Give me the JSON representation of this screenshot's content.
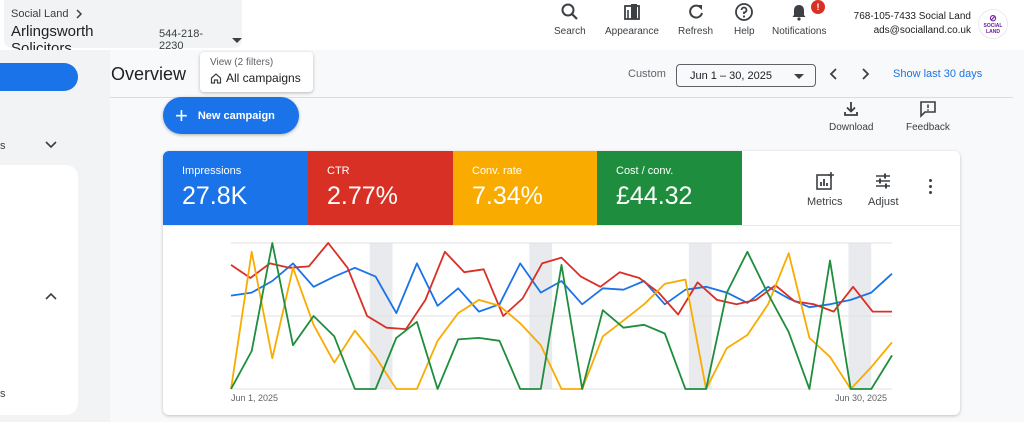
{
  "header": {
    "manager_label": "Social Land",
    "account_name": "Arlingsworth Solicitors",
    "account_id": "544-218-2230",
    "tools": [
      {
        "label": "Search",
        "icon": "search-icon"
      },
      {
        "label": "Appearance",
        "icon": "appearance-icon"
      },
      {
        "label": "Refresh",
        "icon": "refresh-icon"
      },
      {
        "label": "Help",
        "icon": "help-icon"
      },
      {
        "label": "Notifications",
        "icon": "bell-icon",
        "badge": "!"
      }
    ],
    "user_line1": "768-105-7433 Social Land",
    "user_line2": "ads@socialland.co.uk",
    "logo_text": [
      "SOCIAL",
      "LAND"
    ]
  },
  "sidebar": {
    "item1_suffix": "s",
    "item2_suffix": "s"
  },
  "page": {
    "title": "Overview",
    "view_filters": "View (2 filters)",
    "view_scope": "All campaigns",
    "date_preset": "Custom",
    "date_range": "Jun 1 – 30, 2025",
    "show_last": "Show last 30 days",
    "new_campaign": "New campaign",
    "download": "Download",
    "feedback": "Feedback"
  },
  "metrics": [
    {
      "label": "Impressions",
      "value": "27.8K",
      "color": "#1a73e8"
    },
    {
      "label": "CTR",
      "value": "2.77%",
      "color": "#d93025"
    },
    {
      "label": "Conv. rate",
      "value": "7.34%",
      "color": "#f9ab00"
    },
    {
      "label": "Cost / conv.",
      "value": "£44.32",
      "color": "#1e8e3e"
    }
  ],
  "card_tools": {
    "metrics": "Metrics",
    "adjust": "Adjust"
  },
  "chart_data": {
    "type": "line",
    "x_start_label": "Jun 1, 2025",
    "x_end_label": "Jun 30, 2025",
    "weekend_days": [
      7,
      8,
      14,
      15,
      21,
      22,
      28,
      29
    ],
    "series": [
      {
        "color": "#1a73e8",
        "values": [
          0.64,
          0.66,
          0.74,
          0.86,
          0.7,
          0.77,
          0.83,
          0.77,
          0.52,
          0.86,
          0.57,
          0.69,
          0.53,
          0.58,
          0.86,
          0.66,
          0.74,
          0.58,
          0.69,
          0.68,
          0.74,
          0.58,
          0.68,
          0.7,
          0.66,
          0.59,
          0.7,
          0.62,
          0.56,
          0.58,
          0.61,
          0.66,
          0.79
        ]
      },
      {
        "color": "#d93025",
        "values": [
          0.85,
          0.76,
          0.86,
          0.83,
          0.84,
          1.0,
          0.83,
          0.5,
          0.42,
          0.41,
          0.61,
          0.94,
          0.8,
          0.82,
          0.5,
          0.62,
          0.86,
          0.9,
          0.77,
          0.7,
          0.8,
          0.76,
          0.66,
          0.51,
          0.73,
          0.61,
          0.58,
          0.61,
          0.71,
          0.6,
          0.58,
          0.53,
          0.7,
          0.53,
          0.53
        ]
      },
      {
        "color": "#f9ab00",
        "values": [
          0.0,
          0.94,
          0.21,
          0.83,
          0.44,
          0.18,
          0.4,
          0.22,
          0.0,
          0.0,
          0.33,
          0.52,
          0.61,
          0.57,
          0.45,
          0.3,
          0.0,
          0.0,
          0.36,
          0.47,
          0.58,
          0.72,
          0.75,
          0.0,
          0.28,
          0.37,
          0.58,
          0.93,
          0.35,
          0.22,
          0.0,
          0.15,
          0.32
        ]
      },
      {
        "color": "#1e8e3e",
        "values": [
          0.0,
          0.26,
          1.0,
          0.3,
          0.5,
          0.36,
          0.0,
          0.0,
          0.35,
          0.46,
          0.0,
          0.34,
          0.35,
          0.33,
          0.0,
          0.0,
          0.85,
          0.0,
          0.54,
          0.42,
          0.44,
          0.38,
          0.0,
          0.0,
          0.66,
          0.94,
          0.65,
          0.39,
          0.0,
          0.88,
          0.0,
          0.0,
          0.23
        ]
      }
    ]
  }
}
